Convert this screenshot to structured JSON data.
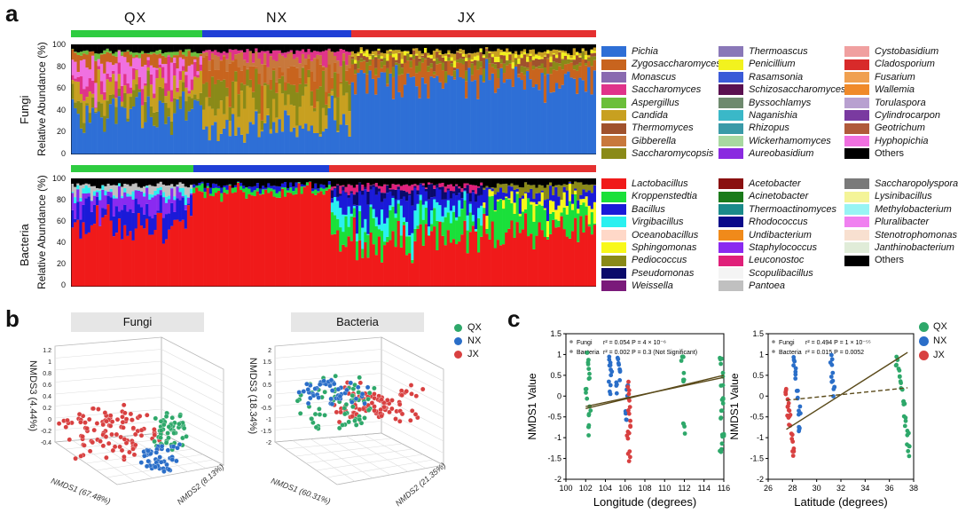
{
  "panels": {
    "a": "a",
    "b": "b",
    "c": "c"
  },
  "panel_a": {
    "groups": [
      "QX",
      "NX",
      "JX"
    ],
    "group_colors": {
      "QX": "#2ecc40",
      "NX": "#1f3fd6",
      "JX": "#e53030"
    },
    "fungi_row_label": "Fungi",
    "bacteria_row_label": "Bacteria",
    "y_axis_title": "Relative Abundance (%)",
    "y_ticks": [
      "100",
      "80",
      "60",
      "40",
      "20",
      "0"
    ],
    "fungi_legend": [
      {
        "name": "Pichia",
        "color": "#2e6fd6"
      },
      {
        "name": "Zygosaccharomyces",
        "color": "#c8641e"
      },
      {
        "name": "Monascus",
        "color": "#8a6ab0"
      },
      {
        "name": "Saccharomyces",
        "color": "#e0338a"
      },
      {
        "name": "Aspergillus",
        "color": "#6bbf3a"
      },
      {
        "name": "Candida",
        "color": "#c8a020"
      },
      {
        "name": "Thermomyces",
        "color": "#a0522d"
      },
      {
        "name": "Gibberella",
        "color": "#c8783c"
      },
      {
        "name": "Saccharomycopsis",
        "color": "#8a8a18"
      },
      {
        "name": "Thermoascus",
        "color": "#8a78b8"
      },
      {
        "name": "Penicillium",
        "color": "#f2f21e"
      },
      {
        "name": "Rasamsonia",
        "color": "#3a5ad8"
      },
      {
        "name": "Schizosaccharomyces",
        "color": "#5a1050"
      },
      {
        "name": "Byssochlamys",
        "color": "#6e8a6e"
      },
      {
        "name": "Naganishia",
        "color": "#3ab8c8"
      },
      {
        "name": "Rhizopus",
        "color": "#3a9aa8"
      },
      {
        "name": "Wickerhamomyces",
        "color": "#a8d8a0"
      },
      {
        "name": "Aureobasidium",
        "color": "#8a2ae0"
      },
      {
        "name": "Cystobasidium",
        "color": "#f0a0a0"
      },
      {
        "name": "Cladosporium",
        "color": "#d82a2a"
      },
      {
        "name": "Fusarium",
        "color": "#f0a050"
      },
      {
        "name": "Wallemia",
        "color": "#f08a2a"
      },
      {
        "name": "Torulaspora",
        "color": "#b8a0d0"
      },
      {
        "name": "Cylindrocarpon",
        "color": "#7a3aa0"
      },
      {
        "name": "Geotrichum",
        "color": "#b05a3a"
      },
      {
        "name": "Hyphopichia",
        "color": "#f070e0"
      },
      {
        "name": "Others",
        "color": "#000000"
      }
    ],
    "bacteria_legend": [
      {
        "name": "Lactobacillus",
        "color": "#f01a1a"
      },
      {
        "name": "Kroppenstedtia",
        "color": "#1ae03a"
      },
      {
        "name": "Bacillus",
        "color": "#1a1ad8"
      },
      {
        "name": "Virgibacillus",
        "color": "#2af0f0"
      },
      {
        "name": "Oceanobacillus",
        "color": "#ffd8c8"
      },
      {
        "name": "Sphingomonas",
        "color": "#f8f81a"
      },
      {
        "name": "Pediococcus",
        "color": "#8a8a18"
      },
      {
        "name": "Pseudomonas",
        "color": "#0a0a6a"
      },
      {
        "name": "Weissella",
        "color": "#7a1a7a"
      },
      {
        "name": "Acetobacter",
        "color": "#8a1010"
      },
      {
        "name": "Acinetobacter",
        "color": "#1a7a1a"
      },
      {
        "name": "Thermoactinomyces",
        "color": "#1a8a8a"
      },
      {
        "name": "Rhodococcus",
        "color": "#0a0a8a"
      },
      {
        "name": "Undibacterium",
        "color": "#f08a1a"
      },
      {
        "name": "Staphylococcus",
        "color": "#8a2af0"
      },
      {
        "name": "Leuconostoc",
        "color": "#e0207a"
      },
      {
        "name": "Scopulibacillus",
        "color": "#f4f4f4"
      },
      {
        "name": "Pantoea",
        "color": "#c0c0c0"
      },
      {
        "name": "Saccharopolyspora",
        "color": "#7a7a7a"
      },
      {
        "name": "Lysinibacillus",
        "color": "#f4f498"
      },
      {
        "name": "Methylobacterium",
        "color": "#98f4f4"
      },
      {
        "name": "Pluralibacter",
        "color": "#f080f0"
      },
      {
        "name": "Stenotrophomonas",
        "color": "#f8e0d0"
      },
      {
        "name": "Janthinobacterium",
        "color": "#e0ecd8"
      },
      {
        "name": "Others",
        "color": "#000000"
      }
    ]
  },
  "panel_b": {
    "fungi_title": "Fungi",
    "bacteria_title": "Bacteria",
    "fungi_axes": {
      "z": "NMDS3 (4.44%)",
      "x": "NMDS1 (67.48%)",
      "y": "NMDS2 (8.13%)"
    },
    "bacteria_axes": {
      "z": "NMDS3 (18.34%)",
      "x": "NMDS1 (60.31%)",
      "y": "NMDS2 (21.35%)"
    },
    "fungi_z_ticks": [
      "1.2",
      "1",
      "0.8",
      "0.6",
      "0.4",
      "0.2",
      "0",
      "-0.2",
      "-0.4"
    ],
    "bacteria_z_ticks": [
      "2",
      "1.5",
      "1",
      "0.5",
      "0",
      "-0.5",
      "-1",
      "-1.5",
      "-2"
    ],
    "legend": [
      {
        "name": "QX",
        "color": "#2ea86a"
      },
      {
        "name": "NX",
        "color": "#2a6ec8"
      },
      {
        "name": "JX",
        "color": "#d84040"
      }
    ]
  },
  "chart_data": [
    {
      "type": "scatter",
      "title": "Longitude (degrees)",
      "xlabel": "Longitude (degrees)",
      "ylabel": "NMDS1 Value",
      "xlim": [
        100,
        116
      ],
      "ylim": [
        -2,
        1.5
      ],
      "x_ticks": [
        "100",
        "102",
        "104",
        "106",
        "108",
        "110",
        "112",
        "114",
        "116"
      ],
      "y_ticks": [
        "1.5",
        "1",
        "0.5",
        "0",
        "-0.5",
        "-1",
        "-1.5",
        "-2"
      ],
      "stats": [
        {
          "label": "Fungi",
          "text": "r² = 0.054  P = 4 × 10⁻⁶"
        },
        {
          "label": "Bacteria",
          "text": "r² = 0.002  P = 0.3 (Not Significant)"
        }
      ],
      "series": [
        {
          "name": "QX",
          "color": "#2ea86a",
          "points": [
            [
              102.2,
              0.9
            ],
            [
              102.3,
              0.5
            ],
            [
              102.1,
              0.0
            ],
            [
              102.4,
              -0.4
            ],
            [
              102.2,
              -0.8
            ],
            [
              111.8,
              0.9
            ],
            [
              111.9,
              0.4
            ],
            [
              112,
              -0.8
            ],
            [
              115.7,
              0.9
            ],
            [
              115.8,
              0.4
            ],
            [
              115.9,
              0.0
            ],
            [
              115.8,
              -0.4
            ],
            [
              115.9,
              -0.8
            ],
            [
              115.7,
              -1.2
            ]
          ]
        },
        {
          "name": "NX",
          "color": "#2a6ec8",
          "points": [
            [
              104.5,
              0.9
            ],
            [
              104.6,
              0.6
            ],
            [
              104.4,
              0.2
            ],
            [
              105.3,
              0.9
            ],
            [
              105.4,
              0.5
            ],
            [
              105.2,
              0.2
            ],
            [
              106.2,
              0.1
            ],
            [
              106.1,
              -0.4
            ]
          ]
        },
        {
          "name": "JX",
          "color": "#d84040",
          "points": [
            [
              106.3,
              0.2
            ],
            [
              106.4,
              -0.2
            ],
            [
              106.5,
              -0.6
            ],
            [
              106.3,
              -1.0
            ],
            [
              106.4,
              -1.4
            ]
          ]
        }
      ],
      "fits": [
        {
          "name": "Fungi",
          "from": [
            102,
            -0.3
          ],
          "to": [
            116,
            0.5
          ],
          "color": "#5a4a1a",
          "style": "solid"
        },
        {
          "name": "Bacteria",
          "from": [
            102,
            -0.25
          ],
          "to": [
            116,
            0.45
          ],
          "color": "#5a4a1a",
          "style": "solid"
        }
      ]
    },
    {
      "type": "scatter",
      "title": "Latitude (degrees)",
      "xlabel": "Latitude (degrees)",
      "ylabel": "NMDS1 Value",
      "xlim": [
        26,
        38
      ],
      "ylim": [
        -2,
        1.5
      ],
      "x_ticks": [
        "26",
        "28",
        "30",
        "32",
        "34",
        "36",
        "38"
      ],
      "y_ticks": [
        "1.5",
        "1",
        "0.5",
        "0",
        "-0.5",
        "-1",
        "-1.5",
        "-2"
      ],
      "stats": [
        {
          "label": "Fungi",
          "text": "r² = 0.494  P = 1 × 10⁻⁵⁵"
        },
        {
          "label": "Bacteria",
          "text": "r² = 0.015  P = 0.0052"
        }
      ],
      "series": [
        {
          "name": "QX",
          "color": "#2ea86a",
          "points": [
            [
              36.6,
              0.9
            ],
            [
              36.8,
              0.6
            ],
            [
              37.0,
              0.2
            ],
            [
              37.2,
              -0.2
            ],
            [
              37.3,
              -0.6
            ],
            [
              37.5,
              -1.0
            ],
            [
              37.6,
              -1.3
            ]
          ]
        },
        {
          "name": "NX",
          "color": "#2a6ec8",
          "points": [
            [
              28.1,
              0.9
            ],
            [
              28.3,
              0.5
            ],
            [
              28.4,
              0.1
            ],
            [
              28.6,
              -0.3
            ],
            [
              28.5,
              -0.8
            ],
            [
              31.2,
              0.9
            ],
            [
              31.3,
              0.5
            ],
            [
              31.4,
              0.1
            ]
          ]
        },
        {
          "name": "JX",
          "color": "#d84040",
          "points": [
            [
              27.5,
              0.2
            ],
            [
              27.7,
              -0.2
            ],
            [
              27.8,
              -0.6
            ],
            [
              28.0,
              -1.0
            ],
            [
              28.1,
              -1.4
            ],
            [
              27.6,
              -0.4
            ]
          ]
        }
      ],
      "fits": [
        {
          "name": "Fungi",
          "from": [
            27.5,
            -0.8
          ],
          "to": [
            37.5,
            1.05
          ],
          "color": "#5a4a1a",
          "style": "solid"
        },
        {
          "name": "Bacteria",
          "from": [
            27.5,
            -0.1
          ],
          "to": [
            37.5,
            0.2
          ],
          "color": "#5a4a1a",
          "style": "dashed"
        }
      ]
    }
  ],
  "panel_c_legend": [
    {
      "name": "QX",
      "color": "#2ea86a"
    },
    {
      "name": "NX",
      "color": "#2a6ec8"
    },
    {
      "name": "JX",
      "color": "#d84040"
    }
  ]
}
